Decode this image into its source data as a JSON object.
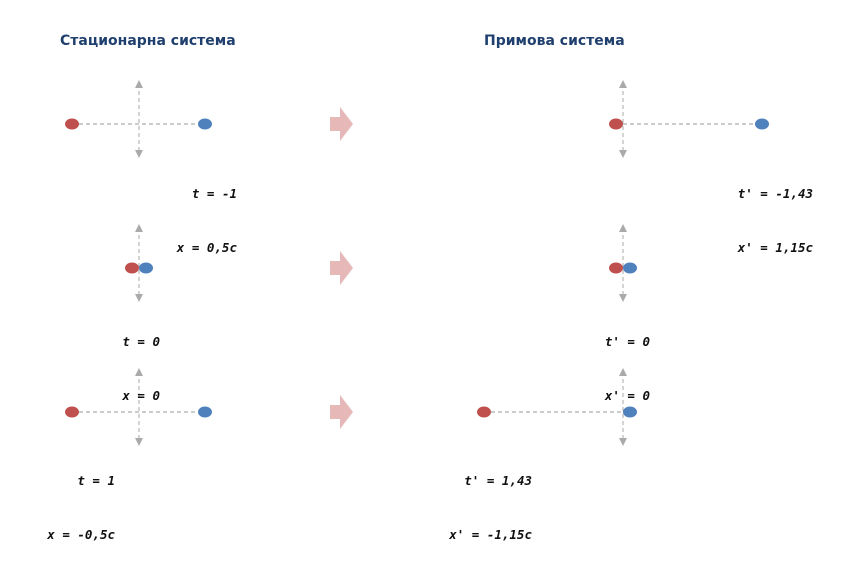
{
  "headings": {
    "stationary": "Стационарна система",
    "moving": "Примова система"
  },
  "colors": {
    "red_body": "#c0504d",
    "blue_body": "#4f81bd",
    "axis": "#aaaaaa",
    "arrow": "#e6b8b7",
    "heading": "#1f3f6e"
  },
  "rows": [
    {
      "stationary": {
        "t": "t = -1",
        "x": "x = 0,5c"
      },
      "moving": {
        "t": "t' = -1,43",
        "x": "x' = 1,15c"
      }
    },
    {
      "stationary": {
        "t": "t = 0",
        "x": "x = 0"
      },
      "moving": {
        "t": "t' = 0",
        "x": "x' = 0"
      }
    },
    {
      "stationary": {
        "t": "t = 1",
        "x": "x = -0,5c"
      },
      "moving": {
        "t": "t' = 1,43",
        "x": "x' = -1,15c"
      }
    }
  ]
}
